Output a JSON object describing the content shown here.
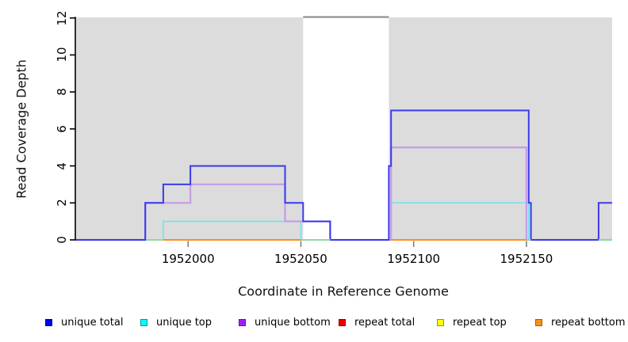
{
  "chart_data": {
    "type": "line",
    "subtype": "step-coverage-plot",
    "xlabel": "Coordinate in Reference Genome",
    "ylabel": "Read Coverage Depth",
    "xlim": [
      1951950,
      1952188
    ],
    "ylim": [
      0,
      12
    ],
    "grid": false,
    "xticks": [
      1952000,
      1952050,
      1952100,
      1952150
    ],
    "xtick_labels": [
      "1952000",
      "1952050",
      "1952100",
      "1952150"
    ],
    "yticks": [
      0,
      2,
      4,
      6,
      8,
      10,
      12
    ],
    "ytick_labels": [
      "0",
      "2",
      "4",
      "6",
      "8",
      "10",
      "12"
    ],
    "shaded_unique_regions": [
      {
        "from": 1951950,
        "to": 1952051
      },
      {
        "from": 1952089,
        "to": 1952188
      }
    ],
    "region_fill": "#DCDCDC",
    "offscale_region": {
      "from": 1952051,
      "to": 1952089,
      "drawn_at_depth": 12,
      "color": "#909090"
    },
    "series": [
      {
        "name": "repeat total",
        "color": "#DD2222",
        "width": 1.5,
        "points": [
          [
            1951950,
            0
          ],
          [
            1952188,
            0
          ]
        ]
      },
      {
        "name": "repeat top",
        "color": "#E8E84A",
        "width": 1.5,
        "points": [
          [
            1951950,
            0
          ],
          [
            1952188,
            0
          ]
        ]
      },
      {
        "name": "repeat bottom",
        "color": "#FF8C1A",
        "width": 2,
        "points": [
          [
            1951950,
            0
          ],
          [
            1952188,
            0
          ]
        ]
      },
      {
        "name": "unique top",
        "color": "#74E4EC",
        "width": 1.7,
        "points": [
          [
            1951950,
            0
          ],
          [
            1951989,
            0
          ],
          [
            1951989,
            1
          ],
          [
            1952050,
            1
          ],
          [
            1952050,
            0
          ],
          [
            1952090,
            0
          ],
          [
            1952090,
            2
          ],
          [
            1952151,
            2
          ],
          [
            1952151,
            0
          ],
          [
            1952188,
            0
          ]
        ]
      },
      {
        "name": "unique bottom",
        "color": "#C79FE6",
        "width": 2.3,
        "points": [
          [
            1951950,
            0
          ],
          [
            1951981,
            0
          ],
          [
            1951981,
            2
          ],
          [
            1952001,
            2
          ],
          [
            1952001,
            3
          ],
          [
            1952043,
            3
          ],
          [
            1952043,
            1
          ],
          [
            1952063,
            1
          ],
          [
            1952063,
            0
          ],
          [
            1952090,
            0
          ],
          [
            1952090,
            5
          ],
          [
            1952150,
            5
          ],
          [
            1952150,
            0
          ],
          [
            1952188,
            0
          ]
        ]
      },
      {
        "name": "unique total",
        "color": "#3A3AEE",
        "width": 2,
        "points": [
          [
            1951950,
            0
          ],
          [
            1951981,
            0
          ],
          [
            1951981,
            2
          ],
          [
            1951989,
            2
          ],
          [
            1951989,
            3
          ],
          [
            1952001,
            3
          ],
          [
            1952001,
            4
          ],
          [
            1952043,
            4
          ],
          [
            1952043,
            2
          ],
          [
            1952051,
            2
          ],
          [
            1952051,
            1
          ],
          [
            1952063,
            1
          ],
          [
            1952063,
            0
          ],
          [
            1952089,
            0
          ],
          [
            1952089,
            4
          ],
          [
            1952090,
            4
          ],
          [
            1952090,
            7
          ],
          [
            1952151,
            7
          ],
          [
            1952151,
            2
          ],
          [
            1952152,
            2
          ],
          [
            1952152,
            0
          ],
          [
            1952182,
            0
          ],
          [
            1952182,
            2
          ],
          [
            1952188,
            2
          ]
        ]
      }
    ],
    "baseline_overlay_segments": [
      {
        "from": 1951982,
        "to": 1951989,
        "color": "#8FD9A0"
      },
      {
        "from": 1951989,
        "to": 1952050,
        "color": "#FF8C1A"
      },
      {
        "from": 1952050,
        "to": 1952063,
        "color": "#8FD9A0"
      },
      {
        "from": 1952090,
        "to": 1952150,
        "color": "#FF8C1A"
      },
      {
        "from": 1952150,
        "to": 1952152,
        "color": "#8FD9A0"
      },
      {
        "from": 1952182,
        "to": 1952188,
        "color": "#8FD9A0"
      }
    ],
    "axis_color": "#000000",
    "xtick_color": "#808080"
  },
  "legend": {
    "items": [
      {
        "label": "unique total",
        "color": "#0000EE",
        "border": "#0000AA"
      },
      {
        "label": "unique top",
        "color": "#00FFFF",
        "border": "#009999"
      },
      {
        "label": "unique bottom",
        "color": "#A020F0",
        "border": "#6A10A0"
      },
      {
        "label": "repeat total",
        "color": "#EE0000",
        "border": "#990000"
      },
      {
        "label": "repeat top",
        "color": "#FFFF00",
        "border": "#999900"
      },
      {
        "label": "repeat bottom",
        "color": "#F59015",
        "border": "#A85E08"
      }
    ]
  }
}
